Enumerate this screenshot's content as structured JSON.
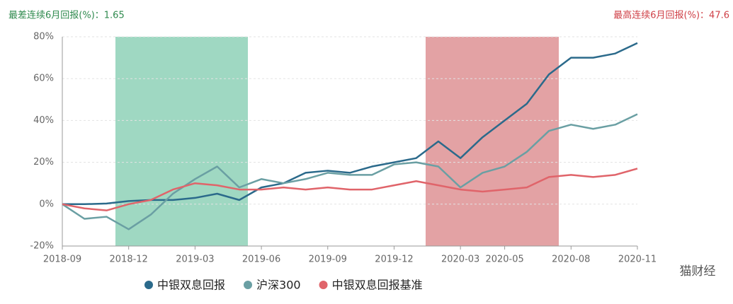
{
  "chart_data": {
    "type": "line",
    "annotations": [
      "最差连续6月回报(%)：1.65",
      "最高连续6月回报(%)：47.6"
    ],
    "watermark": "猫财经",
    "categories": [
      "2018-09",
      null,
      null,
      "2018-12",
      null,
      null,
      "2019-03",
      null,
      null,
      "2019-06",
      null,
      null,
      "2019-09",
      null,
      null,
      "2019-12",
      null,
      null,
      "2020-03",
      null,
      "2020-05",
      null,
      null,
      "2020-08",
      null,
      null,
      "2020-11"
    ],
    "series": [
      {
        "name": "中银双息回报",
        "color": "#2b6a8b",
        "values": [
          0,
          0,
          0.3,
          1.5,
          2,
          2,
          3,
          5,
          2,
          8,
          10,
          15,
          16,
          15,
          18,
          20,
          22,
          30,
          22,
          32,
          40,
          48,
          62,
          70,
          70,
          72,
          77
        ]
      },
      {
        "name": "沪深300",
        "color": "#6a9fa3",
        "values": [
          0,
          -7,
          -6,
          -12,
          -5,
          5,
          12,
          18,
          8,
          12,
          10,
          12,
          15,
          14,
          14,
          19,
          20,
          18,
          8,
          15,
          18,
          25,
          35,
          38,
          36,
          38,
          43
        ]
      },
      {
        "name": "中银双息回报基准",
        "color": "#e0646a",
        "values": [
          0,
          -2,
          -3,
          0,
          2,
          7,
          10,
          9,
          7,
          7,
          8,
          7,
          8,
          7,
          7,
          9,
          11,
          9,
          7,
          6,
          7,
          8,
          13,
          14,
          13,
          14,
          17
        ]
      }
    ],
    "ylim": [
      -20,
      80
    ],
    "yticks": [
      {
        "value": -20,
        "label": "-20%"
      },
      {
        "value": 0,
        "label": "0%"
      },
      {
        "value": 20,
        "label": "20%"
      },
      {
        "value": 40,
        "label": "40%"
      },
      {
        "value": 60,
        "label": "60%"
      },
      {
        "value": 80,
        "label": "80%"
      }
    ],
    "grid": true
  }
}
